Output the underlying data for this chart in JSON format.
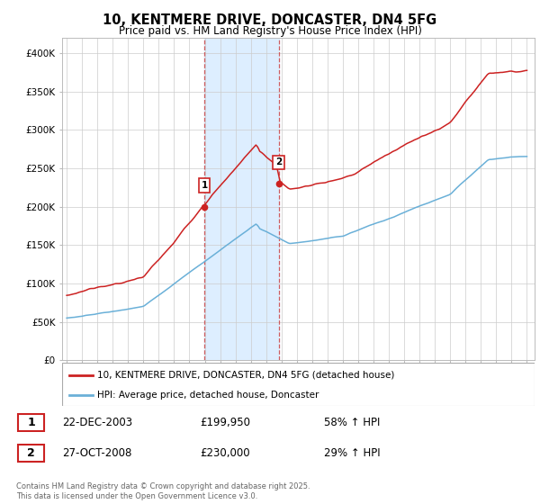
{
  "title": "10, KENTMERE DRIVE, DONCASTER, DN4 5FG",
  "subtitle": "Price paid vs. HM Land Registry's House Price Index (HPI)",
  "ylabel_ticks": [
    "£0",
    "£50K",
    "£100K",
    "£150K",
    "£200K",
    "£250K",
    "£300K",
    "£350K",
    "£400K"
  ],
  "ytick_vals": [
    0,
    50000,
    100000,
    150000,
    200000,
    250000,
    300000,
    350000,
    400000
  ],
  "ylim": [
    0,
    420000
  ],
  "xlim_start": 1994.7,
  "xlim_end": 2025.5,
  "hpi_color": "#6ab0d8",
  "price_color": "#cc2222",
  "shade_color": "#ddeeff",
  "transaction1_date": 2003.97,
  "transaction1_price": 199950,
  "transaction2_date": 2008.82,
  "transaction2_price": 230000,
  "legend_label1": "10, KENTMERE DRIVE, DONCASTER, DN4 5FG (detached house)",
  "legend_label2": "HPI: Average price, detached house, Doncaster",
  "table_row1_date": "22-DEC-2003",
  "table_row1_price": "£199,950",
  "table_row1_hpi": "58% ↑ HPI",
  "table_row2_date": "27-OCT-2008",
  "table_row2_price": "£230,000",
  "table_row2_hpi": "29% ↑ HPI",
  "footnote": "Contains HM Land Registry data © Crown copyright and database right 2025.\nThis data is licensed under the Open Government Licence v3.0.",
  "background_color": "#ffffff",
  "grid_color": "#cccccc"
}
